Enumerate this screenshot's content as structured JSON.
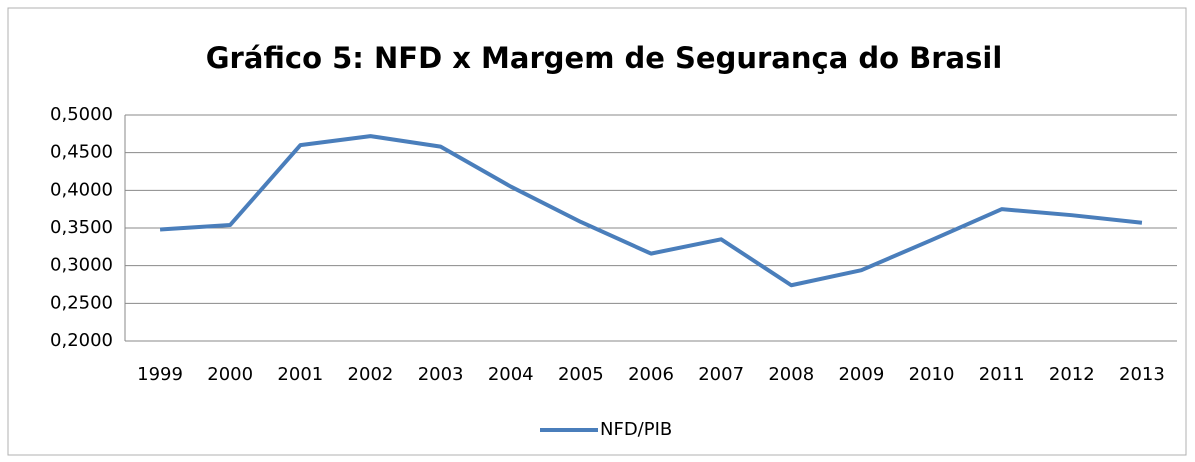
{
  "chart_data": {
    "type": "line",
    "title": "Gráfico 5: NFD x Margem de Segurança do Brasil",
    "categories": [
      "1999",
      "2000",
      "2001",
      "2002",
      "2003",
      "2004",
      "2005",
      "2006",
      "2007",
      "2008",
      "2009",
      "2010",
      "2011",
      "2012",
      "2013"
    ],
    "series": [
      {
        "name": "NFD/PIB",
        "color": "#4a7ebb",
        "values": [
          0.348,
          0.354,
          0.46,
          0.472,
          0.458,
          0.405,
          0.358,
          0.316,
          0.335,
          0.274,
          0.294,
          0.334,
          0.375,
          0.367,
          0.357
        ]
      }
    ],
    "ylim": [
      0.2,
      0.5
    ],
    "yticks": [
      {
        "value": 0.2,
        "label": "0,2000"
      },
      {
        "value": 0.25,
        "label": "0,2500"
      },
      {
        "value": 0.3,
        "label": "0,3000"
      },
      {
        "value": 0.35,
        "label": "0,3500"
      },
      {
        "value": 0.4,
        "label": "0,4000"
      },
      {
        "value": 0.45,
        "label": "0,4500"
      },
      {
        "value": 0.5,
        "label": "0,5000"
      }
    ],
    "grid": true,
    "legend": "bottom"
  }
}
